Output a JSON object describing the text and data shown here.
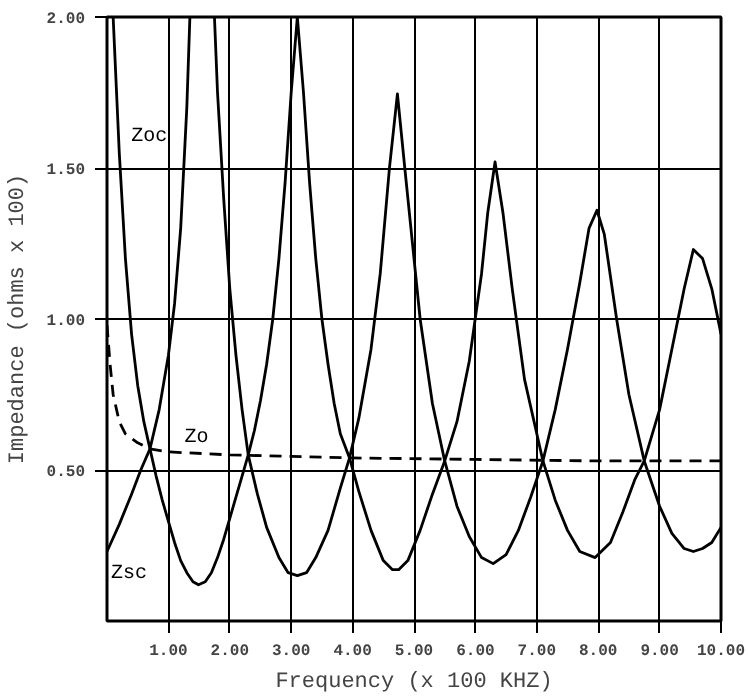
{
  "chart_data": {
    "type": "line",
    "xlabel": "Frequency (x 100 KHZ)",
    "ylabel": "Impedance (ohms x 100)",
    "xlim": [
      0,
      10
    ],
    "ylim": [
      0,
      2
    ],
    "xticks": [
      {
        "value": 1,
        "label": "1.00"
      },
      {
        "value": 2,
        "label": "2.00"
      },
      {
        "value": 3,
        "label": "3.00"
      },
      {
        "value": 4,
        "label": "4.00"
      },
      {
        "value": 5,
        "label": "5.00"
      },
      {
        "value": 6,
        "label": "6.00"
      },
      {
        "value": 7,
        "label": "7.00"
      },
      {
        "value": 8,
        "label": "8.00"
      },
      {
        "value": 9,
        "label": "9.00"
      },
      {
        "value": 10,
        "label": "10.00"
      }
    ],
    "yticks": [
      {
        "value": 0.5,
        "label": "0.50"
      },
      {
        "value": 1,
        "label": "1.00"
      },
      {
        "value": 1.5,
        "label": "1.50"
      },
      {
        "value": 2,
        "label": "2.00"
      }
    ],
    "grid": true,
    "legend": false,
    "marker": "none",
    "series": [
      {
        "name": "Zoc",
        "color": "#000000",
        "line_style": "solid",
        "x": [
          0.1,
          0.2,
          0.3,
          0.4,
          0.5,
          0.6,
          0.7,
          0.8,
          0.9,
          1.0,
          1.1,
          1.2,
          1.3,
          1.4,
          1.49,
          1.6,
          1.7,
          1.8,
          1.9,
          2.0,
          2.1,
          2.2,
          2.3,
          2.4,
          2.5,
          2.6,
          2.7,
          2.8,
          2.9,
          3.0,
          3.1,
          3.2,
          3.3,
          3.4,
          3.5,
          3.6,
          3.7,
          3.8,
          3.95,
          4.1,
          4.3,
          4.5,
          4.65,
          4.75,
          4.9,
          5.1,
          5.3,
          5.5,
          5.7,
          5.9,
          6.1,
          6.2,
          6.32,
          6.45,
          6.6,
          6.8,
          7.1,
          7.3,
          7.5,
          7.7,
          7.95,
          8.2,
          8.4,
          8.6,
          8.75,
          9.0,
          9.2,
          9.4,
          9.55,
          9.7,
          9.85,
          10.0
        ],
        "values": [
          2.0,
          1.55,
          1.2,
          0.95,
          0.78,
          0.66,
          0.57,
          0.48,
          0.4,
          0.33,
          0.26,
          0.2,
          0.16,
          0.13,
          0.12,
          0.13,
          0.16,
          0.21,
          0.27,
          0.34,
          0.41,
          0.48,
          0.55,
          0.63,
          0.73,
          0.85,
          1.0,
          1.2,
          1.45,
          1.75,
          2.0,
          1.75,
          1.45,
          1.2,
          1.0,
          0.85,
          0.72,
          0.62,
          0.54,
          0.43,
          0.3,
          0.2,
          0.17,
          0.17,
          0.2,
          0.3,
          0.42,
          0.53,
          0.66,
          0.86,
          1.15,
          1.35,
          1.52,
          1.35,
          1.1,
          0.8,
          0.53,
          0.4,
          0.3,
          0.23,
          0.21,
          0.26,
          0.36,
          0.47,
          0.53,
          0.7,
          0.9,
          1.1,
          1.23,
          1.2,
          1.1,
          0.95
        ]
      },
      {
        "name": "Zsc",
        "color": "#000000",
        "line_style": "solid",
        "x": [
          0,
          0.2,
          0.4,
          0.55,
          0.7,
          0.85,
          1.0,
          1.1,
          1.2,
          1.3,
          1.35,
          1.55,
          1.75,
          1.8,
          1.9,
          2.0,
          2.1,
          2.2,
          2.3,
          2.45,
          2.6,
          2.8,
          2.95,
          3.1,
          3.25,
          3.4,
          3.6,
          3.8,
          3.95,
          4.1,
          4.3,
          4.45,
          4.6,
          4.73,
          4.85,
          4.95,
          5.1,
          5.3,
          5.5,
          5.7,
          5.9,
          6.1,
          6.29,
          6.5,
          6.7,
          6.9,
          7.1,
          7.3,
          7.5,
          7.7,
          7.85,
          7.98,
          8.1,
          8.3,
          8.5,
          8.75,
          9.0,
          9.2,
          9.4,
          9.55,
          9.7,
          9.85,
          10.0
        ],
        "values": [
          0.23,
          0.32,
          0.42,
          0.5,
          0.57,
          0.7,
          0.88,
          1.05,
          1.3,
          1.7,
          2.0,
          null,
          2.0,
          1.75,
          1.4,
          1.1,
          0.88,
          0.7,
          0.55,
          0.42,
          0.31,
          0.21,
          0.16,
          0.15,
          0.16,
          0.21,
          0.3,
          0.44,
          0.54,
          0.67,
          0.9,
          1.15,
          1.5,
          1.745,
          1.5,
          1.3,
          1.0,
          0.72,
          0.53,
          0.38,
          0.28,
          0.21,
          0.19,
          0.22,
          0.3,
          0.41,
          0.53,
          0.7,
          0.9,
          1.12,
          1.3,
          1.36,
          1.28,
          1.0,
          0.75,
          0.53,
          0.38,
          0.29,
          0.24,
          0.23,
          0.24,
          0.26,
          0.31
        ]
      },
      {
        "name": "Zo",
        "color": "#000000",
        "line_style": "dashed",
        "x": [
          0,
          0.05,
          0.1,
          0.2,
          0.3,
          0.5,
          0.7,
          1.0,
          2.0,
          3.0,
          4.0,
          6.0,
          8.0,
          10.0
        ],
        "values": [
          0.98,
          0.85,
          0.75,
          0.66,
          0.62,
          0.59,
          0.57,
          0.56,
          0.55,
          0.545,
          0.54,
          0.535,
          0.53,
          0.53
        ]
      }
    ]
  }
}
